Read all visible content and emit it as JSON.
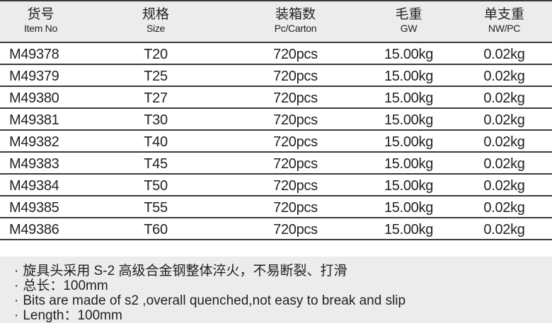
{
  "headers": [
    {
      "zh": "货号",
      "en": "Item No"
    },
    {
      "zh": "规格",
      "en": "Size"
    },
    {
      "zh": "装箱数",
      "en": "Pc/Carton"
    },
    {
      "zh": "毛重",
      "en": "GW"
    },
    {
      "zh": "单支重",
      "en": "NW/PC"
    }
  ],
  "rows": [
    [
      "M49378",
      "T20",
      "720pcs",
      "15.00kg",
      "0.02kg"
    ],
    [
      "M49379",
      "T25",
      "720pcs",
      "15.00kg",
      "0.02kg"
    ],
    [
      "M49380",
      "T27",
      "720pcs",
      "15.00kg",
      "0.02kg"
    ],
    [
      "M49381",
      "T30",
      "720pcs",
      "15.00kg",
      "0.02kg"
    ],
    [
      "M49382",
      "T40",
      "720pcs",
      "15.00kg",
      "0.02kg"
    ],
    [
      "M49383",
      "T45",
      "720pcs",
      "15.00kg",
      "0.02kg"
    ],
    [
      "M49384",
      "T50",
      "720pcs",
      "15.00kg",
      "0.02kg"
    ],
    [
      "M49385",
      "T55",
      "720pcs",
      "15.00kg",
      "0.02kg"
    ],
    [
      "M49386",
      "T60",
      "720pcs",
      "15.00kg",
      "0.02kg"
    ]
  ],
  "bullet": "·",
  "notes": [
    "旋具头采用 S-2 高级合金钢整体淬火，不易断裂、打滑",
    "总长：100mm",
    "Bits are made of s2 ,overall quenched,not easy to break and slip",
    "Length：100mm"
  ]
}
